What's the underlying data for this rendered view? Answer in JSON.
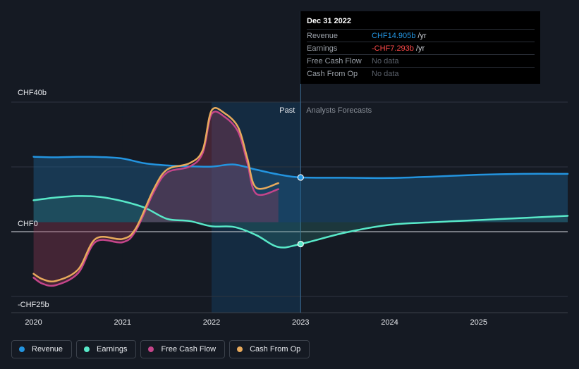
{
  "chart_data": {
    "type": "line",
    "y_unit": "CHF billions",
    "ylim": [
      -25,
      40
    ],
    "y_ticks": [
      {
        "value": 40,
        "label": "CHF40b"
      },
      {
        "value": 0,
        "label": "CHF0"
      },
      {
        "value": -25,
        "label": "-CHF25b"
      }
    ],
    "x_ticks": [
      {
        "value": 2020.0,
        "label": "2020"
      },
      {
        "value": 2021.0,
        "label": "2021"
      },
      {
        "value": 2022.0,
        "label": "2022"
      },
      {
        "value": 2023.0,
        "label": "2023"
      },
      {
        "value": 2024.0,
        "label": "2024"
      },
      {
        "value": 2025.0,
        "label": "2025"
      }
    ],
    "xlim": [
      2019.75,
      2026.0
    ],
    "past_label": "Past",
    "forecast_label": "Analysts Forecasts",
    "divider_x": 2023.0,
    "series": [
      {
        "name": "Revenue",
        "color": "#2394df",
        "fill": true,
        "x": [
          2020.0,
          2020.25,
          2020.5,
          2020.75,
          2021.0,
          2021.25,
          2021.5,
          2021.75,
          2022.0,
          2022.25,
          2022.5,
          2022.75,
          2023.0,
          2023.5,
          2024.0,
          2024.5,
          2025.0,
          2025.5,
          2026.0
        ],
        "y": [
          21.8,
          21.6,
          21.8,
          21.7,
          21.2,
          19.6,
          18.9,
          18.6,
          18.5,
          19.2,
          17.5,
          15.9,
          14.905,
          14.8,
          14.7,
          15.2,
          15.8,
          16.1,
          16.1
        ]
      },
      {
        "name": "Earnings",
        "color": "#58e8c8",
        "fill": true,
        "x": [
          2020.0,
          2020.25,
          2020.5,
          2020.75,
          2021.0,
          2021.25,
          2021.5,
          2021.75,
          2022.0,
          2022.25,
          2022.5,
          2022.75,
          2023.0,
          2023.5,
          2024.0,
          2024.5,
          2025.0,
          2025.5,
          2026.0
        ],
        "y": [
          7.3,
          8.2,
          8.7,
          8.4,
          7.0,
          4.8,
          1.1,
          0.4,
          -1.4,
          -1.6,
          -4.3,
          -8.3,
          -7.293,
          -3.5,
          -0.9,
          0.0,
          0.7,
          1.4,
          2.1
        ]
      },
      {
        "name": "Free Cash Flow",
        "color": "#c4458a",
        "fill": true,
        "x": [
          2020.0,
          2020.1,
          2020.25,
          2020.5,
          2020.7,
          2021.0,
          2021.15,
          2021.35,
          2021.5,
          2021.75,
          2021.9,
          2022.0,
          2022.15,
          2022.3,
          2022.4,
          2022.5,
          2022.75
        ],
        "y": [
          -18.5,
          -20.5,
          -21.0,
          -17.0,
          -6.5,
          -6.7,
          -2.8,
          10.0,
          16.5,
          18.5,
          23.0,
          36.0,
          35.0,
          30.0,
          20.0,
          9.5,
          11.0
        ]
      },
      {
        "name": "Cash From Op",
        "color": "#e8aa5c",
        "fill": false,
        "x": [
          2020.0,
          2020.1,
          2020.25,
          2020.5,
          2020.7,
          2021.0,
          2021.15,
          2021.35,
          2021.5,
          2021.75,
          2021.9,
          2022.0,
          2022.15,
          2022.3,
          2022.4,
          2022.5,
          2022.75
        ],
        "y": [
          -17.2,
          -19.0,
          -19.6,
          -15.8,
          -5.5,
          -5.6,
          -2.0,
          11.0,
          17.5,
          19.6,
          24.0,
          37.2,
          36.2,
          31.5,
          21.5,
          11.5,
          13.0
        ]
      }
    ],
    "markers": [
      {
        "series": "Revenue",
        "x": 2023.0,
        "y": 14.905
      },
      {
        "series": "Earnings",
        "x": 2023.0,
        "y": -7.293
      }
    ]
  },
  "tooltip": {
    "date": "Dec 31 2022",
    "rows": [
      {
        "name": "Revenue",
        "value": "CHF14.905b",
        "unit": "/yr",
        "color": "#2394df"
      },
      {
        "name": "Earnings",
        "value": "-CHF7.293b",
        "unit": "/yr",
        "color": "#ff4a4a"
      },
      {
        "name": "Free Cash Flow",
        "value": "No data",
        "unit": "",
        "color": "#5a606a"
      },
      {
        "name": "Cash From Op",
        "value": "No data",
        "unit": "",
        "color": "#5a606a"
      }
    ]
  },
  "legend": [
    {
      "label": "Revenue",
      "color": "#2394df"
    },
    {
      "label": "Earnings",
      "color": "#58e8c8"
    },
    {
      "label": "Free Cash Flow",
      "color": "#c4458a"
    },
    {
      "label": "Cash From Op",
      "color": "#e8aa5c"
    }
  ]
}
